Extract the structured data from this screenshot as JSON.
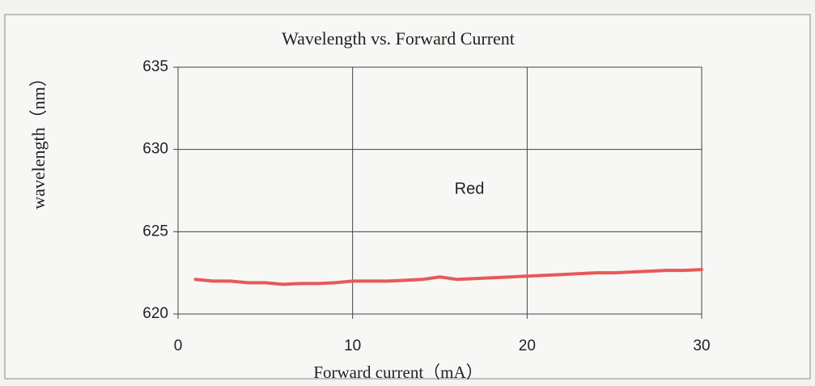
{
  "chart_data": {
    "type": "line",
    "title": "Wavelength vs. Forward Current",
    "xlabel": "Forward current（mA）",
    "ylabel": "wavelength（nm）",
    "annotation": "Red",
    "x": [
      1,
      2,
      3,
      4,
      5,
      6,
      7,
      8,
      9,
      10,
      11,
      12,
      13,
      14,
      15,
      16,
      17,
      18,
      19,
      20,
      21,
      22,
      23,
      24,
      25,
      26,
      27,
      28,
      29,
      30
    ],
    "series": [
      {
        "name": "Red",
        "color": "#e8595a",
        "values": [
          622.1,
          622.0,
          622.0,
          621.9,
          621.9,
          621.8,
          621.85,
          621.85,
          621.9,
          622.0,
          622.0,
          622.0,
          622.05,
          622.1,
          622.25,
          622.1,
          622.15,
          622.2,
          622.25,
          622.3,
          622.35,
          622.4,
          622.45,
          622.5,
          622.5,
          622.55,
          622.6,
          622.65,
          622.65,
          622.7
        ]
      }
    ],
    "xlim": [
      0,
      30
    ],
    "xticks": [
      0,
      10,
      20,
      30
    ],
    "ylim": [
      620,
      635
    ],
    "yticks": [
      620,
      625,
      630,
      635
    ],
    "grid": true
  }
}
